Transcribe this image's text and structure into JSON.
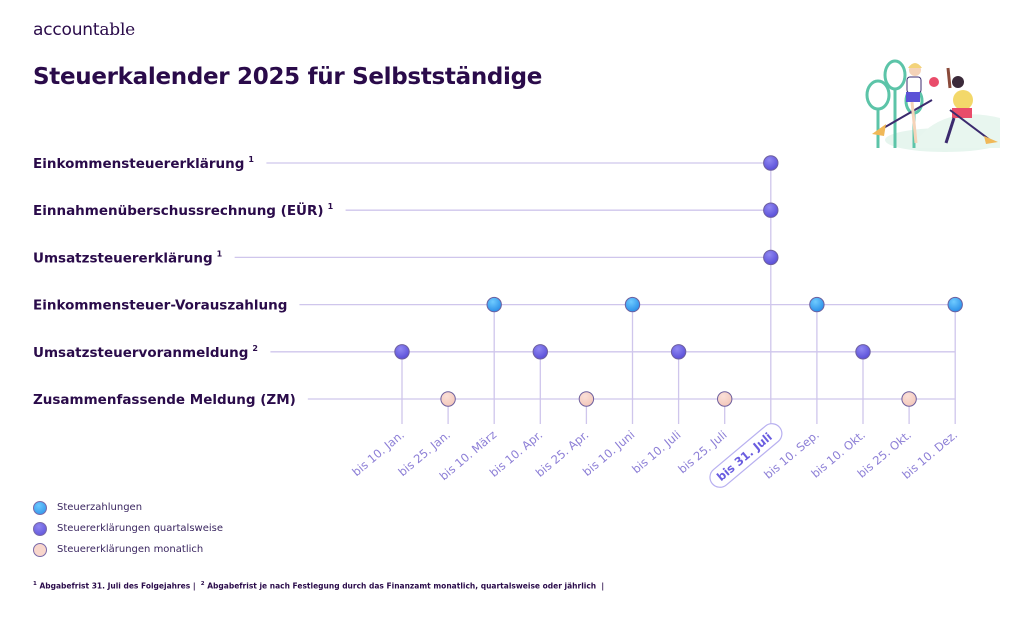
{
  "brand": {
    "logo_bold": "account",
    "logo_serif": "able"
  },
  "header": {
    "title": "Steuerkalender 2025 für Selbstständige"
  },
  "colors": {
    "text": "#2a0b4a",
    "line": "#cfc6ec",
    "steuerzahlung": "#3aa6f0",
    "quartalsweise": "#6e63e0",
    "monatlich": "#f6d0c6",
    "tick": "#8c7ed6"
  },
  "chart_data": {
    "type": "timeline",
    "title": "Steuerkalender 2025 für Selbstständige",
    "categories": [
      "bis 10. Jan.",
      "bis 25. Jan.",
      "bis 10. März",
      "bis 10. Apr.",
      "bis 25. Apr.",
      "bis 10. Juni",
      "bis 10. Juli",
      "bis 25. Juli",
      "bis 31. Juli",
      "bis 10. Sep.",
      "bis 10. Okt.",
      "bis 25. Okt.",
      "bis 10. Dez."
    ],
    "highlighted_category": "bis 31. Juli",
    "series": [
      {
        "name": "Einkommensteuererklärung",
        "footnote": "1",
        "type": "quartalsweise",
        "dates": [
          "bis 31. Juli"
        ]
      },
      {
        "name": "Einnahmenüberschussrechnung (EÜR)",
        "footnote": "1",
        "type": "quartalsweise",
        "dates": [
          "bis 31. Juli"
        ]
      },
      {
        "name": "Umsatzsteuererklärung",
        "footnote": "1",
        "type": "quartalsweise",
        "dates": [
          "bis 31. Juli"
        ]
      },
      {
        "name": "Einkommensteuer-Vorauszahlung",
        "footnote": "",
        "type": "steuerzahlung",
        "dates": [
          "bis 10. März",
          "bis 10. Juni",
          "bis 10. Sep.",
          "bis 10. Dez."
        ]
      },
      {
        "name": "Umsatzsteuervoranmeldung",
        "footnote": "2",
        "type": "quartalsweise",
        "dates": [
          "bis 10. Jan.",
          "bis 10. Apr.",
          "bis 10. Juli",
          "bis 10. Okt."
        ]
      },
      {
        "name": "Zusammenfassende Meldung (ZM)",
        "footnote": "",
        "type": "monatlich",
        "dates": [
          "bis 25. Jan.",
          "bis 25. Apr.",
          "bis 25. Juli",
          "bis 25. Okt."
        ]
      }
    ],
    "legend": [
      {
        "key": "steuerzahlung",
        "label": "Steuerzahlungen"
      },
      {
        "key": "quartalsweise",
        "label": "Steuererklärungen quartalsweise"
      },
      {
        "key": "monatlich",
        "label": "Steuererklärungen monatlich"
      }
    ],
    "legend_position": "bottom-left"
  },
  "footnotes": {
    "n1": "1",
    "t1": " Abgabefrist 31. Juli des Folgejahres |  ",
    "n2": "2",
    "t2": " Abgabefrist je nach Festlegung durch das Finanzamt monatlich, quartalsweise oder jährlich  |"
  }
}
